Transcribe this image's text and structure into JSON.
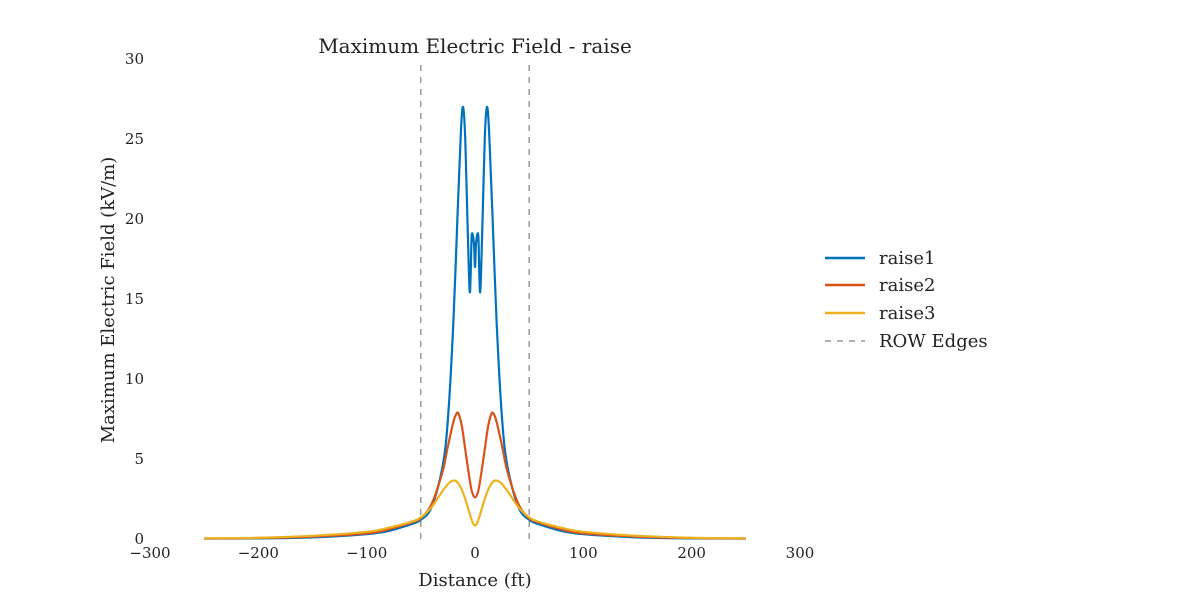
{
  "chart_data": {
    "type": "line",
    "title": "Maximum Electric Field - raise",
    "xlabel": "Distance (ft)",
    "ylabel": "Maximum Electric Field (kV/m)",
    "xlim": [
      -300,
      300
    ],
    "ylim": [
      0,
      30
    ],
    "xticks": [
      -300,
      -200,
      -100,
      0,
      100,
      200,
      300
    ],
    "yticks": [
      0,
      5,
      10,
      15,
      20,
      25,
      30
    ],
    "xtick_labels": [
      "−300",
      "−200",
      "−100",
      "0",
      "100",
      "200",
      "300"
    ],
    "ytick_labels": [
      "0",
      "5",
      "10",
      "15",
      "20",
      "25",
      "30"
    ],
    "grid": false,
    "legend_position": "right",
    "row_edges": [
      -50,
      50
    ],
    "series": [
      {
        "name": "raise1",
        "color": "#0072BD",
        "x": [
          -250,
          -200,
          -150,
          -100,
          -80,
          -60,
          -50,
          -40,
          -30,
          -25,
          -20,
          -16,
          -13,
          -11,
          -9,
          -7,
          -5,
          -4,
          -3,
          -1,
          0,
          1,
          3,
          4,
          5,
          7,
          9,
          11,
          13,
          16,
          20,
          25,
          30,
          40,
          50,
          60,
          80,
          100,
          150,
          200,
          250
        ],
        "y": [
          0.02,
          0.04,
          0.1,
          0.3,
          0.5,
          0.9,
          1.2,
          2.0,
          4.5,
          7.5,
          13.5,
          20.5,
          25.5,
          27.0,
          25.0,
          20.0,
          15.6,
          16.5,
          19.0,
          18.5,
          17.0,
          18.5,
          19.0,
          16.5,
          15.6,
          20.0,
          25.0,
          27.0,
          25.5,
          20.5,
          13.5,
          7.5,
          4.5,
          2.0,
          1.2,
          0.9,
          0.5,
          0.3,
          0.1,
          0.04,
          0.02
        ]
      },
      {
        "name": "raise2",
        "color": "#D95319",
        "x": [
          -250,
          -200,
          -150,
          -100,
          -80,
          -60,
          -50,
          -40,
          -30,
          -25,
          -20,
          -17,
          -15,
          -12,
          -9,
          -6,
          -3,
          0,
          3,
          6,
          9,
          12,
          15,
          17,
          20,
          25,
          30,
          40,
          50,
          60,
          80,
          100,
          150,
          200,
          250
        ],
        "y": [
          0.03,
          0.06,
          0.15,
          0.35,
          0.6,
          1.0,
          1.3,
          2.2,
          4.2,
          5.8,
          7.3,
          7.85,
          7.8,
          7.0,
          5.6,
          4.2,
          3.0,
          2.6,
          3.0,
          4.2,
          5.6,
          7.0,
          7.8,
          7.85,
          7.3,
          5.8,
          4.2,
          2.2,
          1.3,
          1.0,
          0.6,
          0.35,
          0.15,
          0.06,
          0.03
        ]
      },
      {
        "name": "raise3",
        "color": "#EDB120",
        "x": [
          -250,
          -200,
          -150,
          -100,
          -80,
          -60,
          -50,
          -40,
          -30,
          -24,
          -20,
          -17,
          -13,
          -9,
          -5,
          -2,
          0,
          2,
          5,
          9,
          13,
          17,
          20,
          24,
          30,
          40,
          50,
          60,
          80,
          100,
          150,
          200,
          250
        ],
        "y": [
          0.04,
          0.08,
          0.2,
          0.45,
          0.7,
          1.05,
          1.35,
          2.0,
          3.0,
          3.5,
          3.65,
          3.6,
          3.2,
          2.5,
          1.6,
          1.0,
          0.85,
          1.0,
          1.6,
          2.5,
          3.2,
          3.6,
          3.65,
          3.5,
          3.0,
          2.0,
          1.35,
          1.05,
          0.7,
          0.45,
          0.2,
          0.08,
          0.04
        ]
      }
    ],
    "reference_lines": {
      "name": "ROW Edges",
      "color": "#808080",
      "style": "dashed"
    }
  }
}
